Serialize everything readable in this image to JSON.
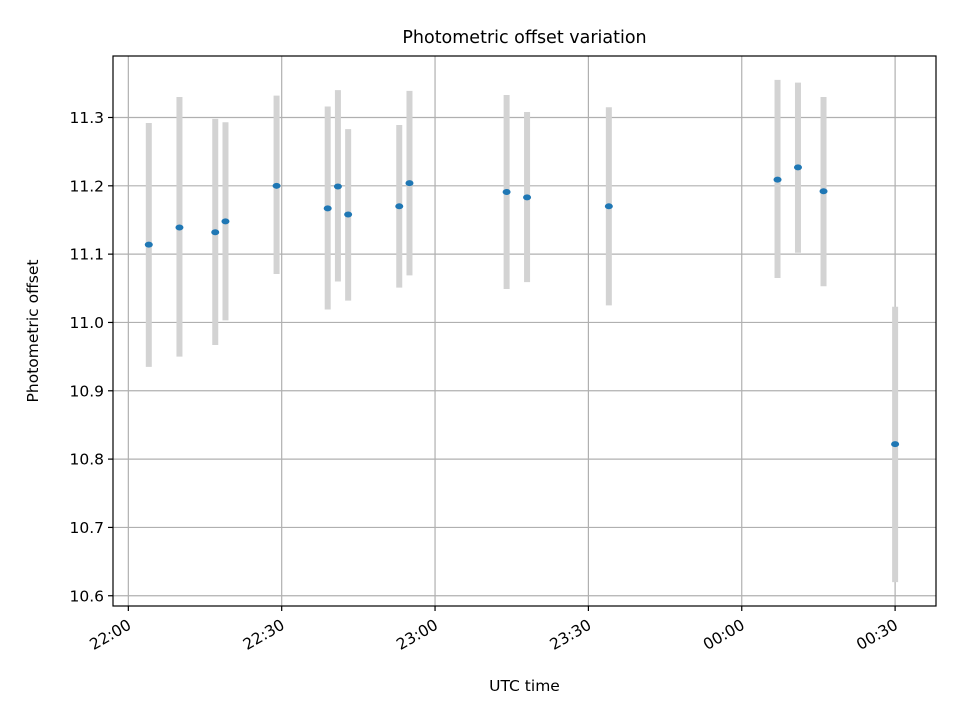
{
  "chart_data": {
    "type": "scatter",
    "title": "Photometric offset variation",
    "xlabel": "UTC time",
    "ylabel": "Photometric offset",
    "x_is_time": true,
    "x_ticks": [
      "22:00",
      "22:30",
      "23:00",
      "23:30",
      "00:00",
      "00:30"
    ],
    "xlim": [
      "21:57",
      "00:38"
    ],
    "y_ticks": [
      "10.6",
      "10.7",
      "10.8",
      "10.9",
      "11.0",
      "11.1",
      "11.2",
      "11.3"
    ],
    "ylim": [
      10.585,
      11.39
    ],
    "grid": true,
    "colors": {
      "point": "#1f77b4",
      "errorbar": "#d3d3d3",
      "grid": "#b0b0b0"
    },
    "points": [
      {
        "x": "22:04",
        "y": 11.114,
        "yerr_low": 10.935,
        "yerr_high": 11.292
      },
      {
        "x": "22:10",
        "y": 11.139,
        "yerr_low": 10.95,
        "yerr_high": 11.33
      },
      {
        "x": "22:17",
        "y": 11.132,
        "yerr_low": 10.967,
        "yerr_high": 11.298
      },
      {
        "x": "22:19",
        "y": 11.148,
        "yerr_low": 11.003,
        "yerr_high": 11.293
      },
      {
        "x": "22:29",
        "y": 11.2,
        "yerr_low": 11.071,
        "yerr_high": 11.332
      },
      {
        "x": "22:39",
        "y": 11.167,
        "yerr_low": 11.019,
        "yerr_high": 11.316
      },
      {
        "x": "22:41",
        "y": 11.199,
        "yerr_low": 11.06,
        "yerr_high": 11.34
      },
      {
        "x": "22:43",
        "y": 11.158,
        "yerr_low": 11.032,
        "yerr_high": 11.283
      },
      {
        "x": "22:53",
        "y": 11.17,
        "yerr_low": 11.051,
        "yerr_high": 11.289
      },
      {
        "x": "22:55",
        "y": 11.204,
        "yerr_low": 11.069,
        "yerr_high": 11.339
      },
      {
        "x": "23:14",
        "y": 11.191,
        "yerr_low": 11.049,
        "yerr_high": 11.333
      },
      {
        "x": "23:18",
        "y": 11.183,
        "yerr_low": 11.059,
        "yerr_high": 11.308
      },
      {
        "x": "23:34",
        "y": 11.17,
        "yerr_low": 11.025,
        "yerr_high": 11.315
      },
      {
        "x": "00:07",
        "y": 11.209,
        "yerr_low": 11.065,
        "yerr_high": 11.355
      },
      {
        "x": "00:11",
        "y": 11.227,
        "yerr_low": 11.102,
        "yerr_high": 11.351
      },
      {
        "x": "00:16",
        "y": 11.192,
        "yerr_low": 11.053,
        "yerr_high": 11.33
      },
      {
        "x": "00:30",
        "y": 10.822,
        "yerr_low": 10.62,
        "yerr_high": 11.023
      }
    ]
  }
}
